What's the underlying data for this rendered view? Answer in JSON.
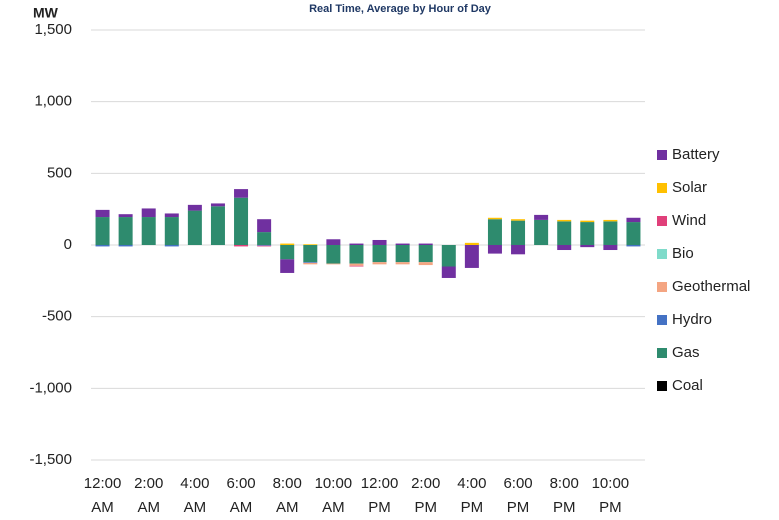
{
  "chart_data": {
    "type": "stacked-bar",
    "title": "Real Time, Average by Hour of Day",
    "y_label": "MW",
    "categories": [
      "12:00 AM",
      null,
      "2:00 AM",
      null,
      "4:00 AM",
      null,
      "6:00 AM",
      null,
      "8:00 AM",
      null,
      "10:00 AM",
      null,
      "12:00 PM",
      null,
      "2:00 PM",
      null,
      "4:00 PM",
      null,
      "6:00 PM",
      null,
      "8:00 PM",
      null,
      "10:00 PM",
      null
    ],
    "series": [
      {
        "name": "Coal",
        "color": "#000000",
        "values": [
          0,
          0,
          0,
          0,
          0,
          0,
          0,
          0,
          0,
          0,
          0,
          0,
          0,
          0,
          0,
          0,
          0,
          0,
          0,
          0,
          0,
          0,
          0,
          0
        ]
      },
      {
        "name": "Gas",
        "color": "#2e8b6e",
        "values": [
          195,
          195,
          195,
          195,
          240,
          270,
          330,
          90,
          -100,
          -120,
          -130,
          -130,
          -120,
          -120,
          -120,
          -150,
          0,
          180,
          170,
          175,
          165,
          160,
          165,
          160
        ]
      },
      {
        "name": "Hydro",
        "color": "#4472c4",
        "values": [
          -10,
          -10,
          0,
          -10,
          0,
          0,
          0,
          -5,
          0,
          -5,
          0,
          0,
          0,
          0,
          0,
          0,
          0,
          0,
          0,
          0,
          0,
          0,
          0,
          -10
        ]
      },
      {
        "name": "Geothermal",
        "color": "#f4a582",
        "values": [
          0,
          0,
          0,
          0,
          0,
          0,
          0,
          0,
          0,
          -10,
          -5,
          -15,
          -15,
          -15,
          -20,
          0,
          0,
          0,
          0,
          0,
          0,
          0,
          0,
          0
        ]
      },
      {
        "name": "Bio",
        "color": "#7fdbca",
        "values": [
          0,
          0,
          0,
          0,
          0,
          0,
          0,
          0,
          0,
          0,
          0,
          0,
          0,
          0,
          0,
          0,
          0,
          0,
          0,
          0,
          0,
          0,
          0,
          0
        ]
      },
      {
        "name": "Wind",
        "color": "#e0407a",
        "values": [
          0,
          0,
          0,
          0,
          0,
          0,
          -10,
          -5,
          0,
          0,
          0,
          -5,
          0,
          0,
          0,
          0,
          0,
          0,
          0,
          0,
          0,
          0,
          0,
          0
        ]
      },
      {
        "name": "Solar",
        "color": "#ffc000",
        "values": [
          0,
          0,
          0,
          0,
          0,
          0,
          0,
          0,
          10,
          5,
          0,
          0,
          0,
          0,
          0,
          0,
          15,
          10,
          10,
          0,
          10,
          10,
          10,
          0
        ]
      },
      {
        "name": "Battery",
        "color": "#7030a0",
        "values": [
          50,
          20,
          60,
          25,
          40,
          20,
          60,
          90,
          -95,
          0,
          40,
          10,
          35,
          10,
          10,
          -80,
          -160,
          -60,
          -65,
          35,
          -35,
          -15,
          -35,
          30
        ]
      }
    ],
    "ylim": [
      -1500,
      1500
    ],
    "yticks": [
      {
        "value": -1500,
        "label": "-1,500"
      },
      {
        "value": -1000,
        "label": "-1,000"
      },
      {
        "value": -500,
        "label": "-500"
      },
      0,
      500,
      {
        "value": 1000,
        "label": "1,000"
      },
      {
        "value": 1500,
        "label": "1,500"
      }
    ],
    "grid": true
  }
}
